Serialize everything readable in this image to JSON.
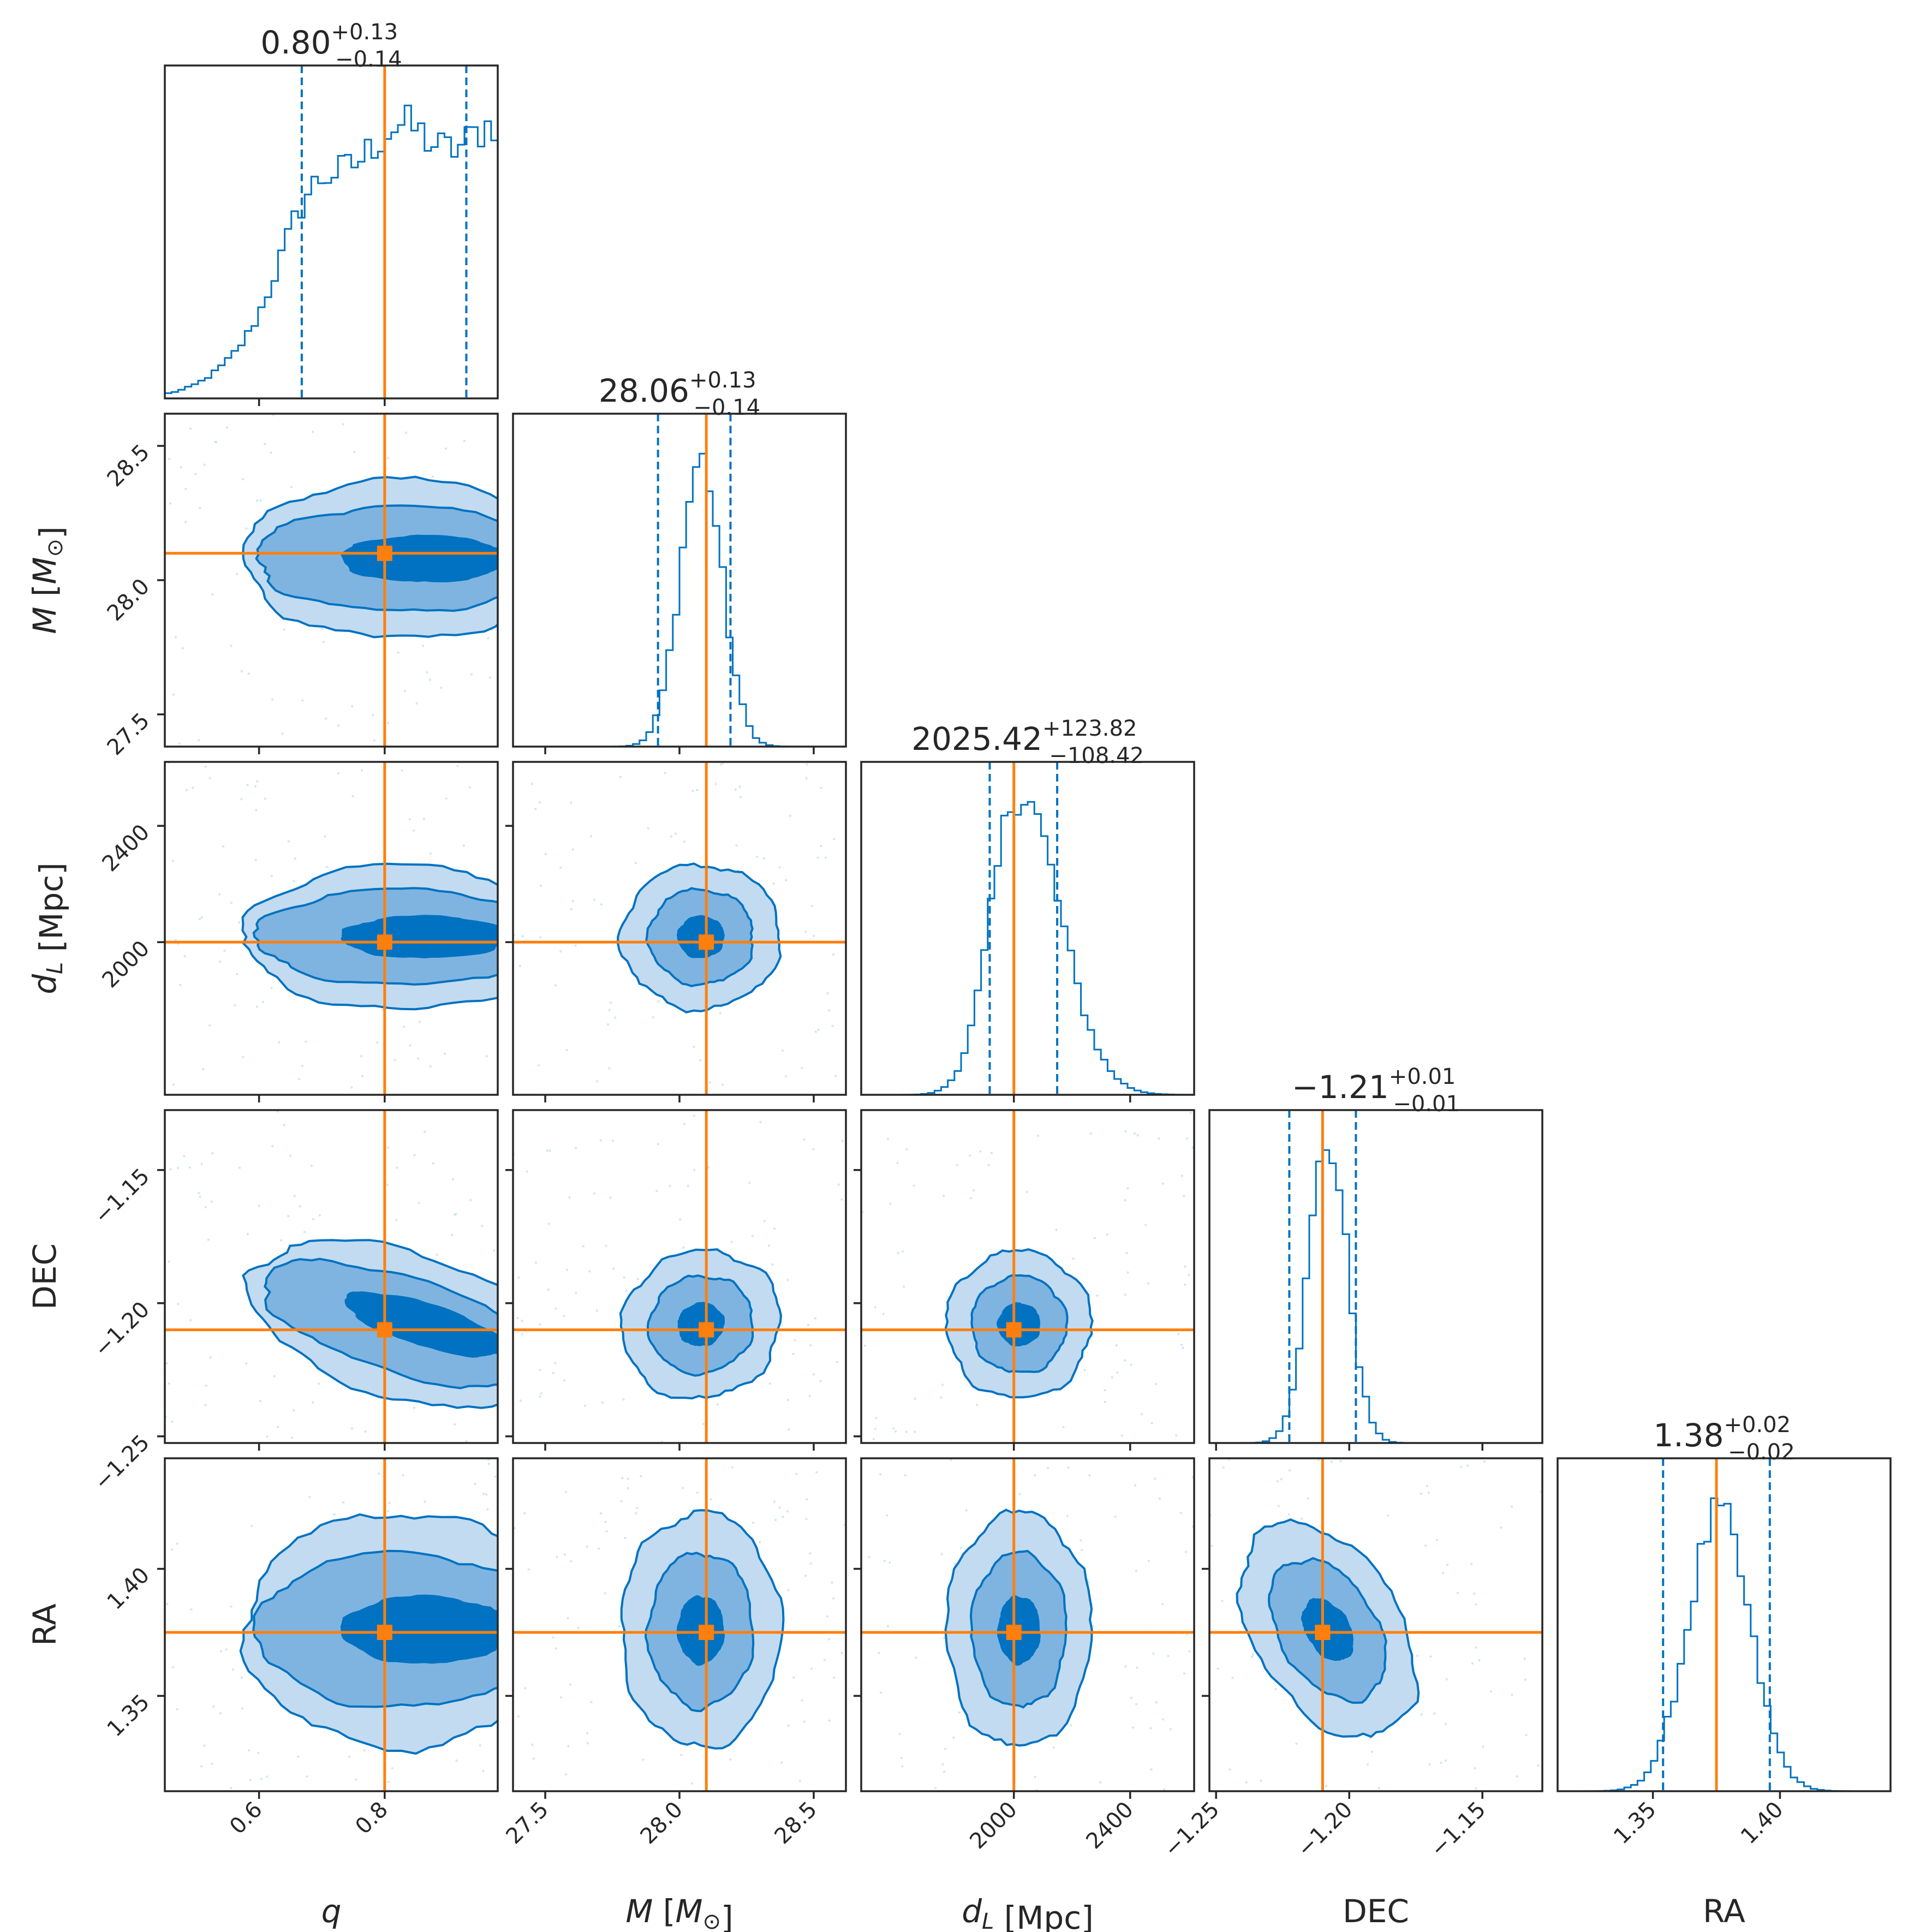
{
  "chart_data": {
    "type": "corner",
    "parameters": [
      {
        "key": "q",
        "label": "q",
        "label_parts": [
          {
            "t": "q",
            "i": true
          }
        ],
        "range": [
          0.45,
          0.98
        ],
        "ticks": [
          0.6,
          0.8
        ],
        "tick_labels": [
          "0.6",
          "0.8"
        ],
        "truth": 0.8,
        "title": {
          "main": "0.80",
          "plus": "+0.13",
          "minus": "−0.14"
        },
        "quantiles": [
          0.668,
          0.93
        ]
      },
      {
        "key": "M",
        "label": "M [M⊙]",
        "label_parts": [
          {
            "t": "M",
            "i": true
          },
          {
            "t": " ["
          },
          {
            "t": "M",
            "i": true
          },
          {
            "t": "⊙",
            "sub": true
          },
          {
            "t": "]"
          }
        ],
        "range": [
          27.38,
          28.62
        ],
        "ticks": [
          27.5,
          28.0,
          28.5
        ],
        "tick_labels": [
          "27.5",
          "28.0",
          "28.5"
        ],
        "truth": 28.1,
        "title": {
          "main": "28.06",
          "plus": "+0.13",
          "minus": "−0.14"
        },
        "quantiles": [
          27.92,
          28.19
        ]
      },
      {
        "key": "dL",
        "label": "dL [Mpc]",
        "label_parts": [
          {
            "t": "d",
            "i": true
          },
          {
            "t": "L",
            "i": true,
            "sub": true
          },
          {
            "t": " [Mpc]"
          }
        ],
        "range": [
          1475,
          2620
        ],
        "ticks": [
          2000,
          2400
        ],
        "tick_labels": [
          "2000",
          "2400"
        ],
        "truth": 2000,
        "title": {
          "main": "2025.42",
          "plus": "+123.82",
          "minus": "−108.42"
        },
        "quantiles": [
          1917,
          2149
        ]
      },
      {
        "key": "DEC",
        "label": "DEC",
        "label_parts": [
          {
            "t": "DEC"
          }
        ],
        "range": [
          -1.2525,
          -1.1275
        ],
        "ticks": [
          -1.25,
          -1.2,
          -1.15
        ],
        "tick_labels": [
          "−1.25",
          "−1.20",
          "−1.15"
        ],
        "truth": -1.21,
        "title": {
          "main": "−1.21",
          "plus": "+0.01",
          "minus": "−0.01"
        },
        "quantiles": [
          -1.2225,
          -1.1975
        ]
      },
      {
        "key": "RA",
        "label": "RA",
        "label_parts": [
          {
            "t": "RA"
          }
        ],
        "range": [
          1.3125,
          1.4435
        ],
        "ticks": [
          1.35,
          1.4
        ],
        "tick_labels": [
          "1.35",
          "1.40"
        ],
        "truth": 1.375,
        "title": {
          "main": "1.38",
          "plus": "+0.02",
          "minus": "−0.02"
        },
        "quantiles": [
          1.354,
          1.396
        ]
      }
    ],
    "histogram_color": "#0072c1",
    "truth_color": "#ff7f0e",
    "contour_fill_colors": [
      "#c2dbf0",
      "#7fb4e0",
      "#0072c1"
    ],
    "contour_line_color": "#0072c1",
    "frame_color": "#262626"
  }
}
